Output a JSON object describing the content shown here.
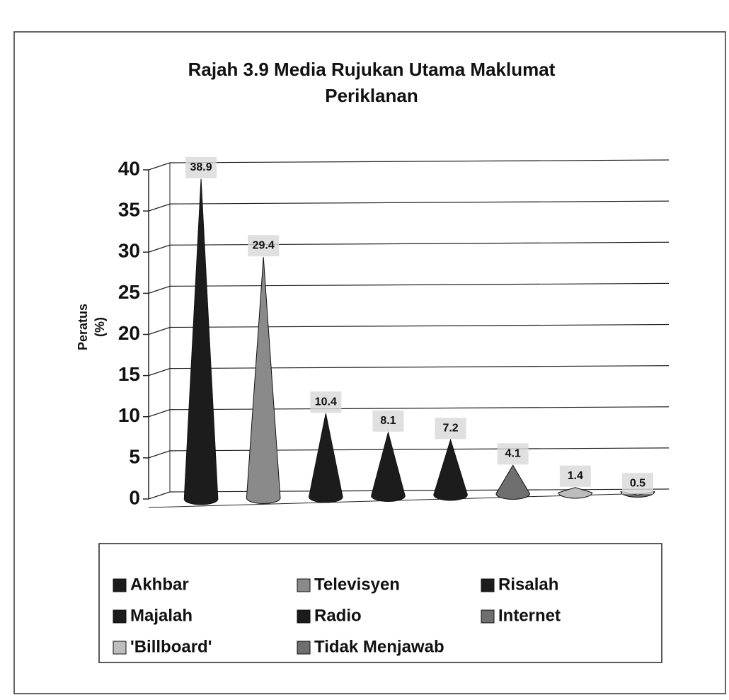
{
  "chart_data": {
    "type": "cone",
    "title": [
      "Rajah 3.9  Media Rujukan Utama Maklumat",
      "Periklanan"
    ],
    "ylabel": [
      "Peratus",
      "(%)"
    ],
    "categories": [
      "Akhbar",
      "Televisyen",
      "Risalah",
      "Majalah",
      "Radio",
      "Internet",
      "'Billboard'",
      "Tidak Menjawab"
    ],
    "values": [
      38.9,
      29.4,
      10.4,
      8.1,
      7.2,
      4.1,
      1.4,
      0.5
    ],
    "colors": [
      "#1c1c1c",
      "#8a8a8a",
      "#1c1c1c",
      "#1c1c1c",
      "#1c1c1c",
      "#6f6f6f",
      "#bdbdbd",
      "#6f6f6f"
    ],
    "ylim": [
      0,
      40
    ],
    "yticks": [
      0,
      5,
      10,
      15,
      20,
      25,
      30,
      35,
      40
    ],
    "grid": true
  }
}
